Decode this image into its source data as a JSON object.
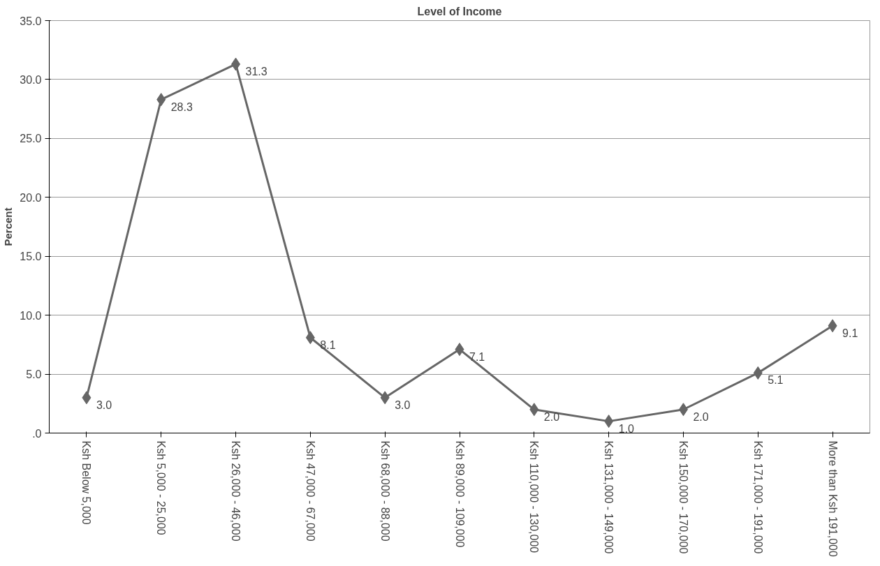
{
  "chart_data": {
    "type": "line",
    "title": "Level of Income",
    "ylabel": "Percent",
    "categories": [
      "Ksh Below 5,000",
      "Ksh 5,000 - 25,000",
      "Ksh 26,000 - 46,000",
      "Ksh 47,000 - 67,000",
      "Ksh 68,000 - 88,000",
      "Ksh 89,000 - 109,000",
      "Ksh 110,000 - 130,000",
      "Ksh 131,000 - 149,000",
      "Ksh 150,000 - 170,000",
      "Ksh 171,000 - 191,000",
      "More than Ksh 191,000"
    ],
    "series": [
      {
        "color": "#666666",
        "values": [
          3.0,
          28.3,
          31.3,
          8.1,
          3.0,
          7.1,
          2.0,
          1.0,
          2.0,
          5.1,
          9.1
        ],
        "value_labels": [
          "3.0",
          "28.3",
          "31.3",
          "8.1",
          "3.0",
          "7.1",
          "2.0",
          "1.0",
          "2.0",
          "5.1",
          "9.1"
        ]
      }
    ],
    "ylim": [
      0,
      35
    ],
    "yticks": [
      {
        "value": 0,
        "label": ".0"
      },
      {
        "value": 5,
        "label": "5.0"
      },
      {
        "value": 10,
        "label": "10.0"
      },
      {
        "value": 15,
        "label": "15.0"
      },
      {
        "value": 20,
        "label": "20.0"
      },
      {
        "value": 25,
        "label": "25.0"
      },
      {
        "value": 30,
        "label": "30.0"
      },
      {
        "value": 35,
        "label": "35.0"
      }
    ],
    "grid": "y",
    "marker": "diamond",
    "line_style": "solid"
  }
}
